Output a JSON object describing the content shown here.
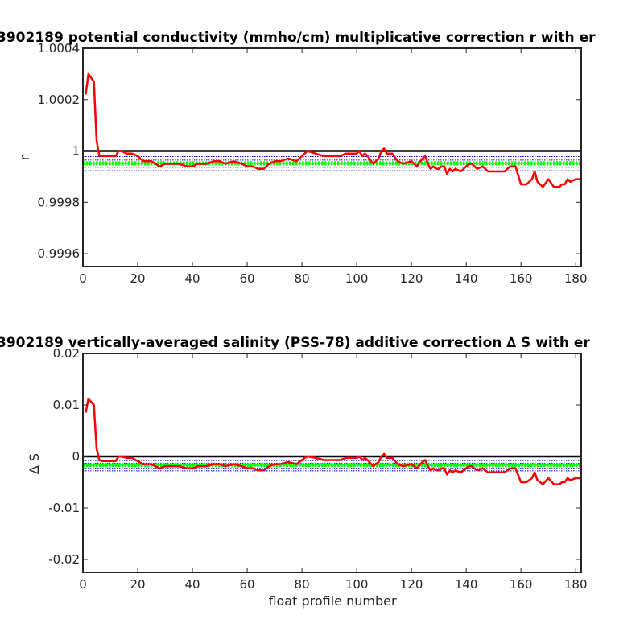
{
  "chart_data": [
    {
      "type": "line",
      "title": "3902189 potential conductivity (mmho/cm) multiplicative correction r with er",
      "xlabel": "",
      "ylabel": "r",
      "xlim": [
        0,
        182
      ],
      "ylim": [
        0.99955,
        1.0004
      ],
      "xticks": [
        0,
        20,
        40,
        60,
        80,
        100,
        120,
        140,
        160,
        180
      ],
      "xtick_labels": [
        "0",
        "20",
        "40",
        "60",
        "80",
        "100",
        "120",
        "140",
        "160",
        "180"
      ],
      "yticks": [
        0.9996,
        0.9998,
        1,
        1.0002,
        1.0004
      ],
      "ytick_labels": [
        "0.9996",
        "0.9998",
        "1",
        "1.0002",
        "1.0004"
      ],
      "reference_line": 1,
      "band_center": 0.999952,
      "band_outer": [
        0.999923,
        0.999978
      ],
      "band_colors": {
        "fill": "#00ff00",
        "edge": "#0000cc"
      },
      "series": [
        {
          "color": "#ff0000",
          "x": [
            1,
            2,
            4,
            5,
            6,
            7,
            10,
            12,
            13,
            14,
            16,
            18,
            20,
            22,
            25,
            28,
            30,
            32,
            35,
            38,
            40,
            42,
            45,
            48,
            50,
            52,
            55,
            58,
            60,
            62,
            64,
            66,
            68,
            70,
            72,
            75,
            78,
            80,
            81,
            82,
            85,
            88,
            90,
            92,
            94,
            96,
            98,
            100,
            101,
            102,
            103,
            104,
            106,
            108,
            109,
            110,
            111,
            112,
            113,
            115,
            117,
            120,
            122,
            124,
            125,
            126,
            127,
            128,
            129,
            130,
            131,
            132,
            133,
            134,
            135,
            136,
            138,
            140,
            141,
            142,
            144,
            146,
            148,
            150,
            152,
            154,
            155,
            156,
            158,
            160,
            162,
            164,
            165,
            166,
            168,
            170,
            172,
            174,
            175,
            176,
            177,
            178,
            180,
            182
          ],
          "y": [
            1.00022,
            1.0003,
            1.00027,
            1.00004,
            0.99998,
            0.99998,
            0.99998,
            0.99998,
            1.0,
            1.0,
            0.99999,
            0.99999,
            0.99998,
            0.99996,
            0.99996,
            0.99994,
            0.99995,
            0.99995,
            0.99995,
            0.99994,
            0.99994,
            0.99995,
            0.99995,
            0.99996,
            0.99996,
            0.99995,
            0.99996,
            0.99995,
            0.99994,
            0.99994,
            0.99993,
            0.99993,
            0.99995,
            0.99996,
            0.99996,
            0.99997,
            0.99996,
            0.99998,
            0.99999,
            1.0,
            0.99999,
            0.99998,
            0.99998,
            0.99998,
            0.99998,
            0.99999,
            0.99999,
            0.99999,
            1.0,
            0.99998,
            0.99999,
            0.99998,
            0.99995,
            0.99997,
            1.0,
            1.00001,
            0.99999,
            0.99999,
            0.99999,
            0.99996,
            0.99995,
            0.99996,
            0.99994,
            0.99997,
            0.99998,
            0.99995,
            0.99993,
            0.99994,
            0.99993,
            0.99993,
            0.99994,
            0.99994,
            0.99991,
            0.99993,
            0.99992,
            0.99993,
            0.99992,
            0.99994,
            0.99995,
            0.99995,
            0.99993,
            0.99994,
            0.99992,
            0.99992,
            0.99992,
            0.99992,
            0.99993,
            0.99994,
            0.99994,
            0.99987,
            0.99987,
            0.99989,
            0.99992,
            0.99988,
            0.99986,
            0.99989,
            0.99986,
            0.99986,
            0.99987,
            0.99987,
            0.99989,
            0.99988,
            0.99989,
            0.99989
          ]
        }
      ]
    },
    {
      "type": "line",
      "title": "3902189 vertically-averaged salinity (PSS-78) additive correction ∆ S with er",
      "xlabel": "float profile number",
      "ylabel": "∆ S",
      "xlim": [
        0,
        182
      ],
      "ylim": [
        -0.0225,
        0.02
      ],
      "xticks": [
        0,
        20,
        40,
        60,
        80,
        100,
        120,
        140,
        160,
        180
      ],
      "xtick_labels": [
        "0",
        "20",
        "40",
        "60",
        "80",
        "100",
        "120",
        "140",
        "160",
        "180"
      ],
      "yticks": [
        -0.02,
        -0.01,
        0,
        0.01,
        0.02
      ],
      "ytick_labels": [
        "-0.02",
        "-0.01",
        "0",
        "0.01",
        "0.02"
      ],
      "reference_line": 0,
      "band_center": -0.0017,
      "band_outer": [
        -0.0028,
        -0.0008
      ],
      "band_colors": {
        "fill": "#00ff00",
        "edge": "#0000cc"
      },
      "series": [
        {
          "color": "#ff0000",
          "x": [
            1,
            2,
            4,
            5,
            6,
            7,
            10,
            12,
            13,
            14,
            16,
            18,
            20,
            22,
            25,
            28,
            30,
            32,
            35,
            38,
            40,
            42,
            45,
            48,
            50,
            52,
            55,
            58,
            60,
            62,
            64,
            66,
            68,
            70,
            72,
            75,
            78,
            80,
            81,
            82,
            85,
            88,
            90,
            92,
            94,
            96,
            98,
            100,
            101,
            102,
            103,
            104,
            106,
            108,
            109,
            110,
            111,
            112,
            113,
            115,
            117,
            120,
            122,
            124,
            125,
            126,
            127,
            128,
            129,
            130,
            131,
            132,
            133,
            134,
            135,
            136,
            138,
            140,
            141,
            142,
            144,
            146,
            148,
            150,
            152,
            154,
            155,
            156,
            158,
            160,
            162,
            164,
            165,
            166,
            168,
            170,
            172,
            174,
            175,
            176,
            177,
            178,
            180,
            182
          ],
          "y": [
            0.0085,
            0.0112,
            0.01,
            0.0015,
            -0.0007,
            -0.0009,
            -0.0009,
            -0.0009,
            0.0,
            0.0,
            -0.0003,
            -0.0003,
            -0.0009,
            -0.0015,
            -0.0015,
            -0.0023,
            -0.0019,
            -0.0019,
            -0.0019,
            -0.0023,
            -0.0023,
            -0.0019,
            -0.0019,
            -0.0015,
            -0.0015,
            -0.0019,
            -0.0015,
            -0.0019,
            -0.0023,
            -0.0023,
            -0.0027,
            -0.0027,
            -0.0019,
            -0.0015,
            -0.0015,
            -0.0011,
            -0.0015,
            -0.0007,
            -0.0003,
            0.0,
            -0.0003,
            -0.0007,
            -0.0007,
            -0.0007,
            -0.0007,
            -0.0003,
            -0.0003,
            -0.0003,
            0.0,
            -0.0007,
            -0.0003,
            -0.0007,
            -0.0019,
            -0.0011,
            0.0,
            0.0005,
            -0.0003,
            -0.0003,
            -0.0003,
            -0.0015,
            -0.0019,
            -0.0015,
            -0.0023,
            -0.0011,
            -0.0007,
            -0.0019,
            -0.0027,
            -0.0023,
            -0.0027,
            -0.0027,
            -0.0023,
            -0.0023,
            -0.0035,
            -0.0027,
            -0.0031,
            -0.0027,
            -0.0031,
            -0.0023,
            -0.0019,
            -0.0019,
            -0.0027,
            -0.0023,
            -0.0031,
            -0.0031,
            -0.0031,
            -0.0031,
            -0.0027,
            -0.0023,
            -0.0023,
            -0.005,
            -0.005,
            -0.0042,
            -0.0031,
            -0.0046,
            -0.0054,
            -0.0042,
            -0.0054,
            -0.0054,
            -0.005,
            -0.005,
            -0.0042,
            -0.0046,
            -0.0042,
            -0.0042
          ]
        }
      ]
    }
  ]
}
